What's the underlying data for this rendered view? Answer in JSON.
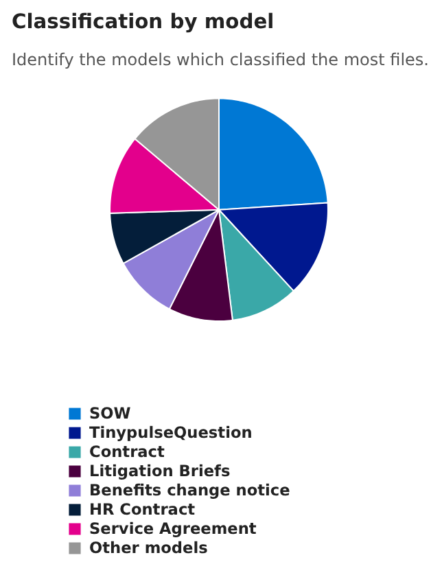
{
  "chart_data": {
    "type": "pie",
    "title": "Classification by model",
    "subtitle": "Identify the models which classified the most files.",
    "categories": [
      "SOW",
      "TinypulseQuestion",
      "Contract",
      "Litigation Briefs",
      "Benefits change notice",
      "HR Contract",
      "Service Agreement",
      "Other models"
    ],
    "values": [
      24,
      14,
      10,
      9.5,
      9.5,
      7.5,
      11.5,
      14
    ],
    "colors": [
      "#0078d4",
      "#00188f",
      "#3aa8a8",
      "#4b003f",
      "#8f7ed8",
      "#041e3a",
      "#e3008c",
      "#969696"
    ],
    "legend": "bottom"
  }
}
